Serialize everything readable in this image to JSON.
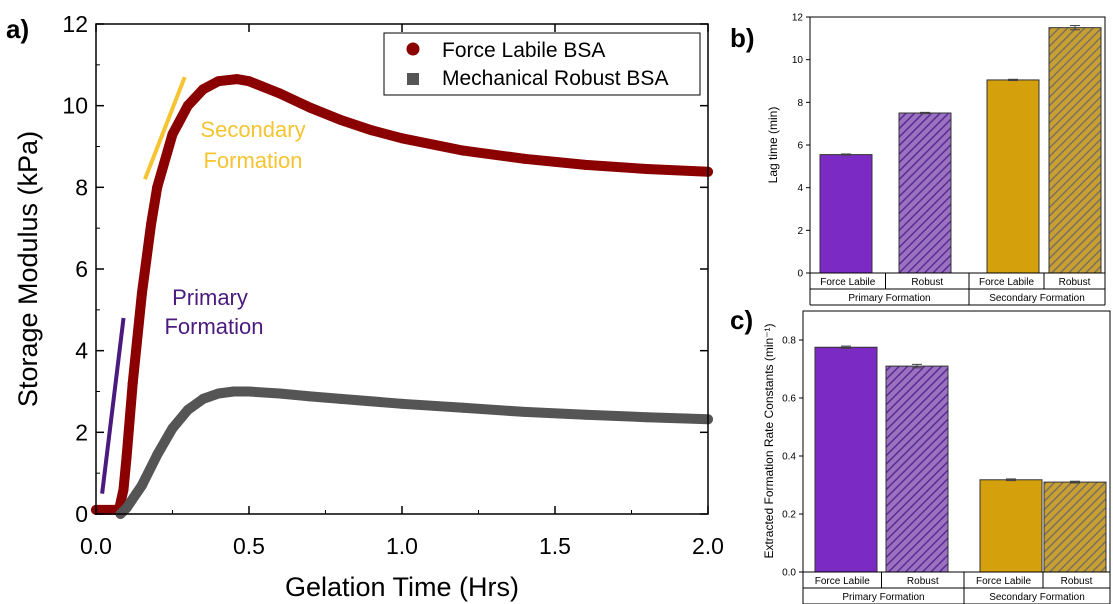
{
  "panels": {
    "a": {
      "letter": "a)",
      "chart_data": {
        "type": "line",
        "xlabel": "Gelation Time (Hrs)",
        "ylabel": "Storage Modulus (kPa)",
        "xlim": [
          0,
          2.0
        ],
        "ylim": [
          0,
          12
        ],
        "x_ticks": [
          "0.0",
          "0.5",
          "1.0",
          "1.5",
          "2.0"
        ],
        "y_ticks": [
          "0",
          "2",
          "4",
          "6",
          "8",
          "10",
          "12"
        ],
        "legend_position": "top-right",
        "series": [
          {
            "name": "Force Labile BSA",
            "color": "#8b0000",
            "marker": "circle",
            "points": [
              [
                0.0,
                0.1
              ],
              [
                0.06,
                0.1
              ],
              [
                0.075,
                0.1
              ],
              [
                0.09,
                0.6
              ],
              [
                0.1,
                1.4
              ],
              [
                0.12,
                3.2
              ],
              [
                0.15,
                5.4
              ],
              [
                0.18,
                7.1
              ],
              [
                0.2,
                8.0
              ],
              [
                0.25,
                9.3
              ],
              [
                0.3,
                10.0
              ],
              [
                0.35,
                10.4
              ],
              [
                0.4,
                10.6
              ],
              [
                0.46,
                10.65
              ],
              [
                0.5,
                10.6
              ],
              [
                0.6,
                10.3
              ],
              [
                0.7,
                9.95
              ],
              [
                0.8,
                9.65
              ],
              [
                0.9,
                9.4
              ],
              [
                1.0,
                9.2
              ],
              [
                1.2,
                8.9
              ],
              [
                1.4,
                8.7
              ],
              [
                1.6,
                8.55
              ],
              [
                1.8,
                8.45
              ],
              [
                2.0,
                8.38
              ]
            ]
          },
          {
            "name": "Mechanical Robust BSA",
            "color": "#555555",
            "marker": "square",
            "points": [
              [
                0.08,
                0.0
              ],
              [
                0.1,
                0.15
              ],
              [
                0.15,
                0.7
              ],
              [
                0.2,
                1.45
              ],
              [
                0.25,
                2.1
              ],
              [
                0.3,
                2.55
              ],
              [
                0.35,
                2.82
              ],
              [
                0.4,
                2.95
              ],
              [
                0.45,
                3.0
              ],
              [
                0.5,
                3.0
              ],
              [
                0.6,
                2.95
              ],
              [
                0.7,
                2.88
              ],
              [
                0.8,
                2.82
              ],
              [
                1.0,
                2.7
              ],
              [
                1.2,
                2.6
              ],
              [
                1.4,
                2.5
              ],
              [
                1.6,
                2.43
              ],
              [
                1.8,
                2.37
              ],
              [
                2.0,
                2.32
              ]
            ]
          }
        ],
        "annotations": [
          {
            "lines": [
              "Secondary",
              "Formation"
            ],
            "color": "#f5c431"
          },
          {
            "lines": [
              "Primary",
              "Formation"
            ],
            "color": "#4b1a7e"
          }
        ],
        "guide_lines": [
          {
            "x": [
              0.16,
              0.29
            ],
            "y": [
              8.2,
              10.7
            ],
            "color": "#f5c431"
          },
          {
            "x": [
              0.02,
              0.09
            ],
            "y": [
              0.5,
              4.8
            ],
            "color": "#4b1a7e"
          }
        ]
      }
    },
    "b": {
      "letter": "b)",
      "chart_data": {
        "type": "bar",
        "ylabel": "Lag time (min)",
        "ylim": [
          0,
          12
        ],
        "y_ticks": [
          "0",
          "2",
          "4",
          "6",
          "8",
          "10",
          "12"
        ],
        "categories": [
          "Force Labile",
          "Robust",
          "Force Labile",
          "Robust"
        ],
        "groups": [
          "Primary Formation",
          "Secondary Formation"
        ],
        "values": [
          5.55,
          7.5,
          9.05,
          11.5
        ],
        "errors": [
          0.03,
          0.03,
          0.03,
          0.1
        ],
        "colors": [
          "#7b2bc4",
          "#7b2bc4",
          "#d4a00c",
          "#d4a00c"
        ],
        "hatched": [
          false,
          true,
          false,
          true
        ]
      }
    },
    "c": {
      "letter": "c)",
      "chart_data": {
        "type": "bar",
        "ylabel": "Extracted Formation Rate Constants (min⁻¹)",
        "ylim": [
          0,
          0.9
        ],
        "y_ticks": [
          "0.0",
          "0.2",
          "0.4",
          "0.6",
          "0.8"
        ],
        "categories": [
          "Force Labile",
          "Robust",
          "Force Labile",
          "Robust"
        ],
        "groups": [
          "Primary Formation",
          "Secondary Formation"
        ],
        "values": [
          0.775,
          0.71,
          0.318,
          0.31
        ],
        "errors": [
          0.004,
          0.006,
          0.003,
          0.003
        ],
        "colors": [
          "#7b2bc4",
          "#7b2bc4",
          "#d4a00c",
          "#d4a00c"
        ],
        "hatched": [
          false,
          true,
          false,
          true
        ]
      }
    }
  }
}
